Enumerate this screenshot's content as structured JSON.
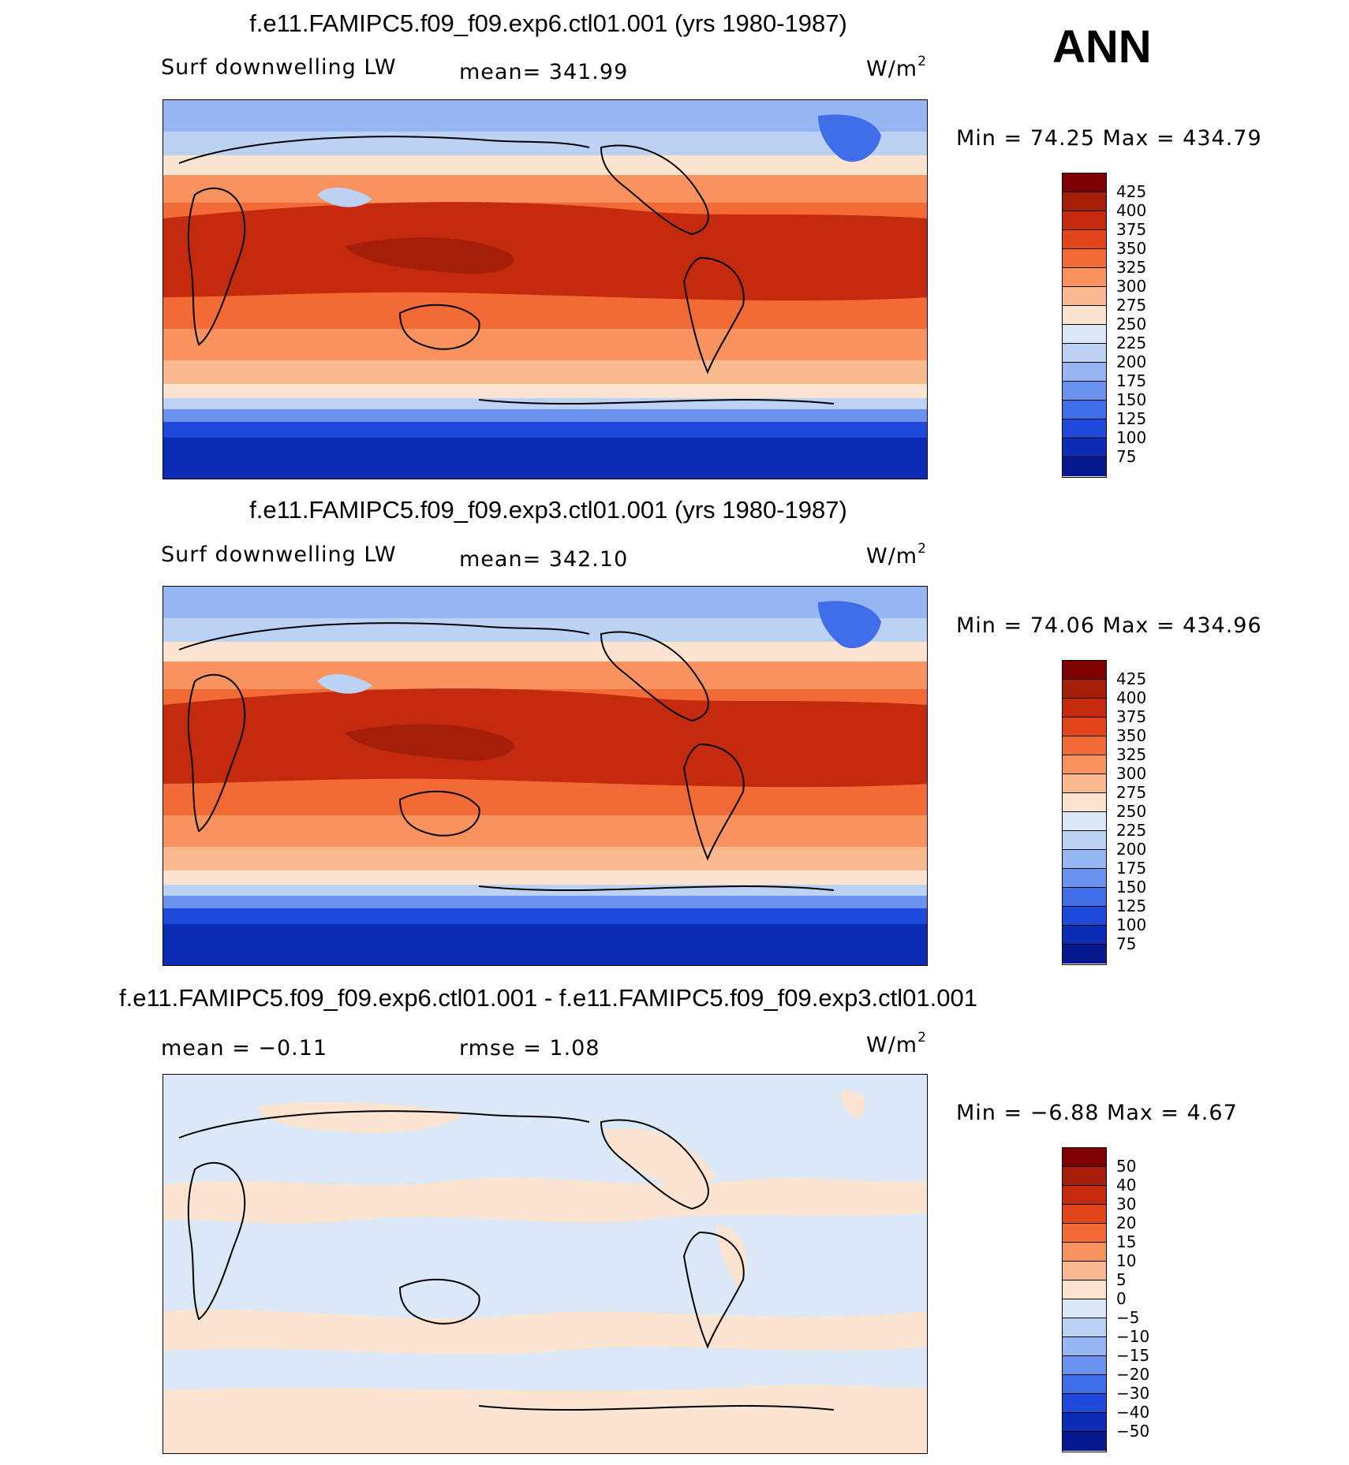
{
  "season": "ANN",
  "units_base": "W/m",
  "units_sup": "2",
  "panels": [
    {
      "title": "f.e11.FAMIPC5.f09_f09.exp6.ctl01.001 (yrs 1980-1987)",
      "variable": "Surf downwelling LW",
      "stat_left": "",
      "stat_mid": "mean= 341.99",
      "minmax": "Min =   74.25 Max = 434.79",
      "colorbar_labels": [
        "425",
        "400",
        "375",
        "350",
        "325",
        "300",
        "275",
        "250",
        "225",
        "200",
        "175",
        "150",
        "125",
        "100",
        "75"
      ]
    },
    {
      "title": "f.e11.FAMIPC5.f09_f09.exp3.ctl01.001 (yrs 1980-1987)",
      "variable": "Surf downwelling LW",
      "stat_left": "",
      "stat_mid": "mean= 342.10",
      "minmax": "Min =   74.06 Max = 434.96",
      "colorbar_labels": [
        "425",
        "400",
        "375",
        "350",
        "325",
        "300",
        "275",
        "250",
        "225",
        "200",
        "175",
        "150",
        "125",
        "100",
        "75"
      ]
    },
    {
      "title": "f.e11.FAMIPC5.f09_f09.exp6.ctl01.001 - f.e11.FAMIPC5.f09_f09.exp3.ctl01.001",
      "variable": "",
      "stat_left": "mean =   −0.11",
      "stat_mid": "rmse =    1.08",
      "minmax": "Min =  −6.88 Max =    4.67",
      "colorbar_labels": [
        "50",
        "40",
        "30",
        "20",
        "15",
        "10",
        "5",
        "0",
        "−5",
        "−10",
        "−15",
        "−20",
        "−30",
        "−40",
        "−50"
      ]
    }
  ],
  "colors": {
    "abs_scale": [
      "#7f0000",
      "#a51e0a",
      "#c42b0e",
      "#e2461a",
      "#f26a36",
      "#f8925f",
      "#fbb98f",
      "#fde4d0",
      "#dbe8f7",
      "#bcd2f5",
      "#95b6f2",
      "#6a92ee",
      "#3f6ee8",
      "#1e49d9",
      "#0c2cb6",
      "#061a8f"
    ],
    "diff_scale": [
      "#7f0000",
      "#a51e0a",
      "#c42b0e",
      "#e2461a",
      "#f26a36",
      "#f8925f",
      "#fbb98f",
      "#fde4d0",
      "#dbe8f7",
      "#bcd2f5",
      "#95b6f2",
      "#6a92ee",
      "#3f6ee8",
      "#1e49d9",
      "#0c2cb6",
      "#061a8f"
    ]
  }
}
